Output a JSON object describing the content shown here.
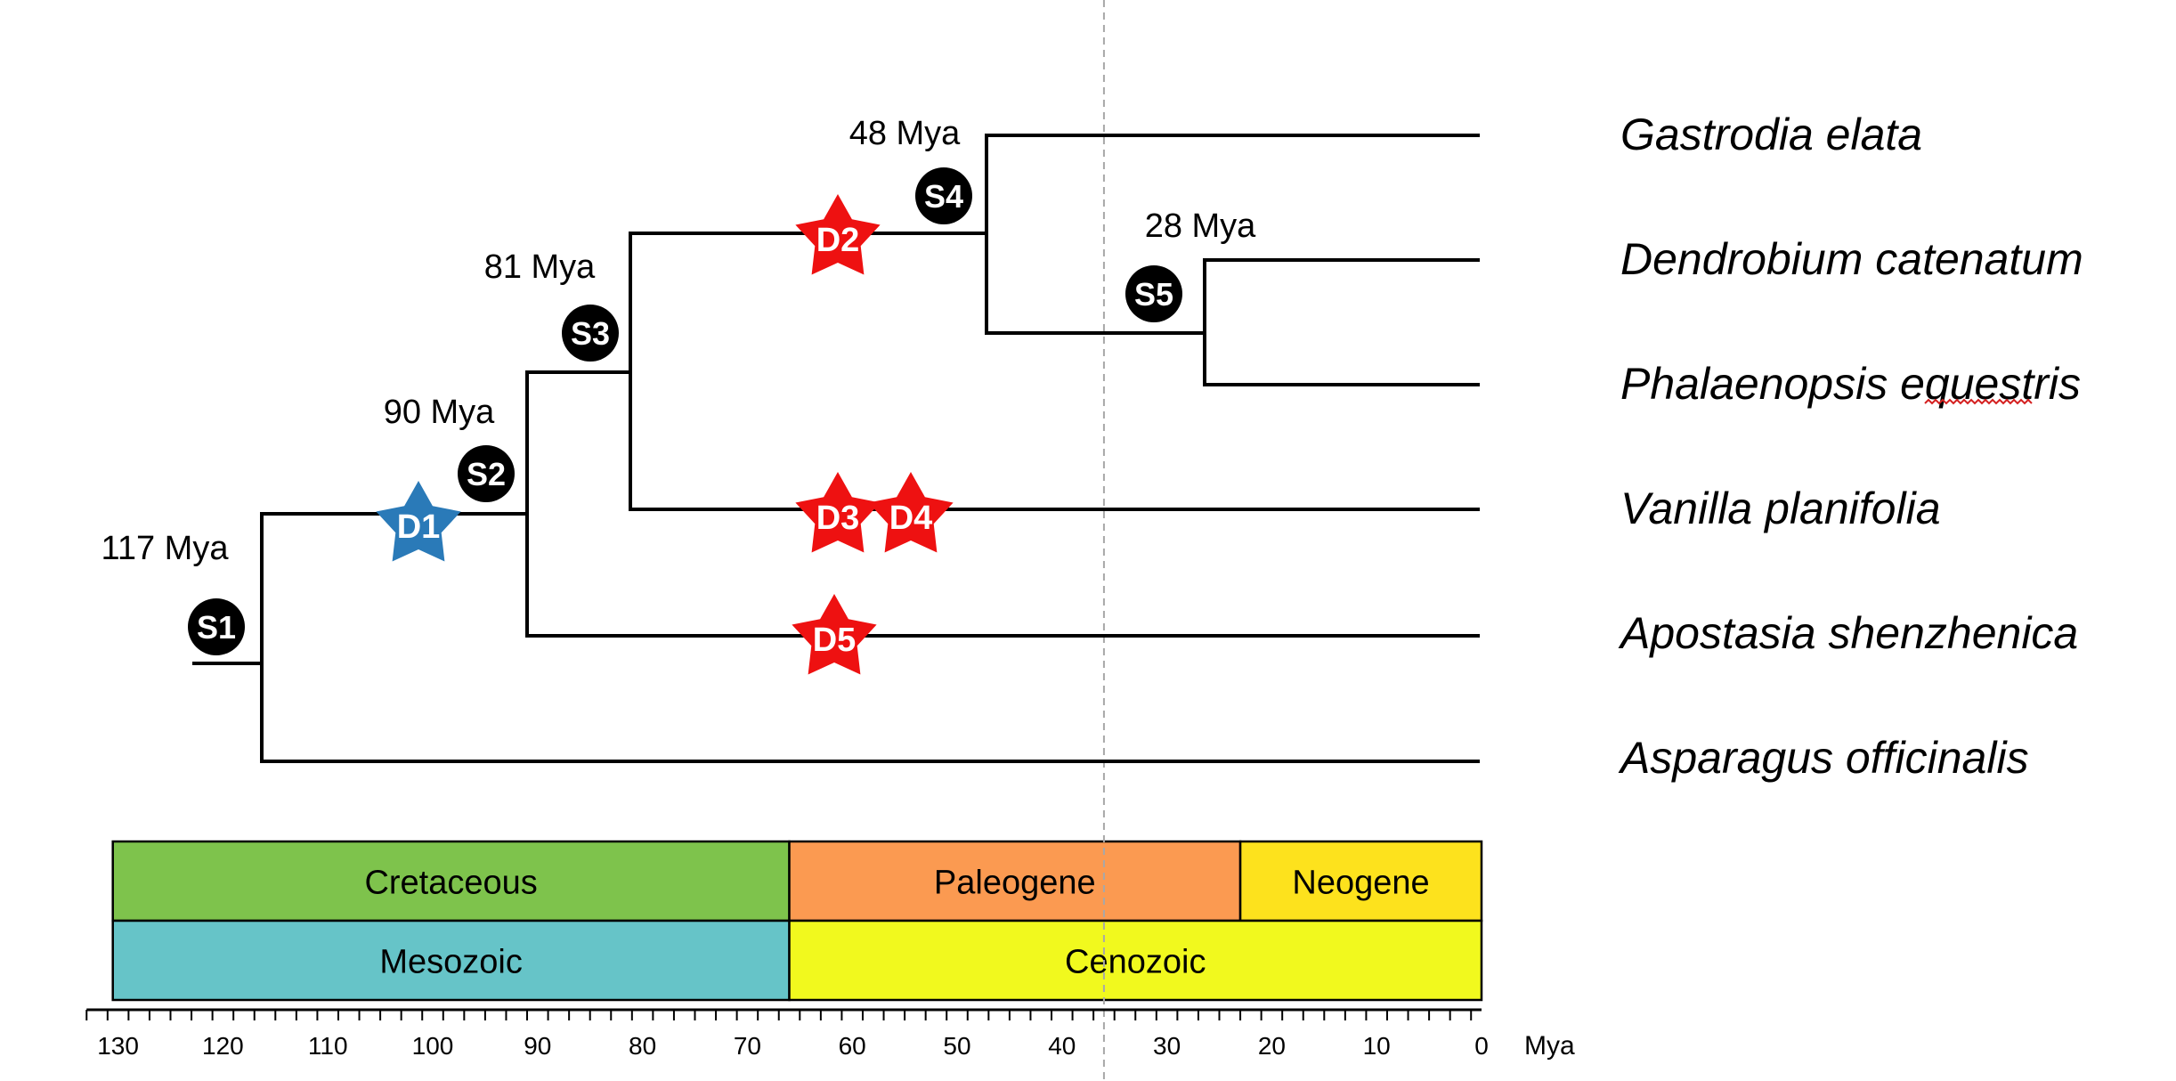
{
  "species": [
    "Gastrodia elata",
    "Dendrobium catenatum",
    "Phalaenopsis equestris",
    "Vanilla planifolia",
    "Apostasia shenzhenica",
    "Asparagus officinalis"
  ],
  "node_ages": [
    {
      "node": "S1",
      "age": 117,
      "label": "117 Mya"
    },
    {
      "node": "S2",
      "age": 90,
      "label": "90 Mya"
    },
    {
      "node": "S3",
      "age": 81,
      "label": "81 Mya"
    },
    {
      "node": "S4",
      "age": 48,
      "label": "48 Mya"
    },
    {
      "node": "S5",
      "age": 28,
      "label": "28 Mya"
    }
  ],
  "duplication_events": [
    {
      "label": "D1",
      "color": "#2a7ab8"
    },
    {
      "label": "D2",
      "color": "#ee1111"
    },
    {
      "label": "D3",
      "color": "#ee1111"
    },
    {
      "label": "D4",
      "color": "#ee1111"
    },
    {
      "label": "D5",
      "color": "#ee1111"
    }
  ],
  "periods": [
    {
      "name": "Cretaceous",
      "from": 130.5,
      "to": 66,
      "color": "#7ec34c"
    },
    {
      "name": "Paleogene",
      "from": 66,
      "to": 23,
      "color": "#fb9a51"
    },
    {
      "name": "Neogene",
      "from": 23,
      "to": 0,
      "color": "#fde21d"
    }
  ],
  "eras": [
    {
      "name": "Mesozoic",
      "from": 130.5,
      "to": 66,
      "color": "#66c4c8"
    },
    {
      "name": "Cenozoic",
      "from": 66,
      "to": 0,
      "color": "#f1f91e"
    }
  ],
  "axis": {
    "unit": "Mya",
    "ticks": [
      130,
      120,
      110,
      100,
      90,
      80,
      70,
      60,
      50,
      40,
      30,
      20,
      10,
      0
    ],
    "minor_step": 2,
    "range": [
      133,
      0
    ]
  },
  "dashed_reference_age": 36
}
